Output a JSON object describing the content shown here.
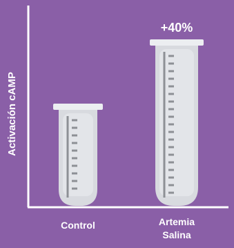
{
  "chart_data": {
    "type": "bar",
    "y_label": "Activación cAMP",
    "categories": [
      "Control",
      "Artemia Salina"
    ],
    "values": [
      142,
      235
    ],
    "annotation": "+40%",
    "color": "#d8dadf",
    "ylim": [
      0,
      292
    ]
  }
}
